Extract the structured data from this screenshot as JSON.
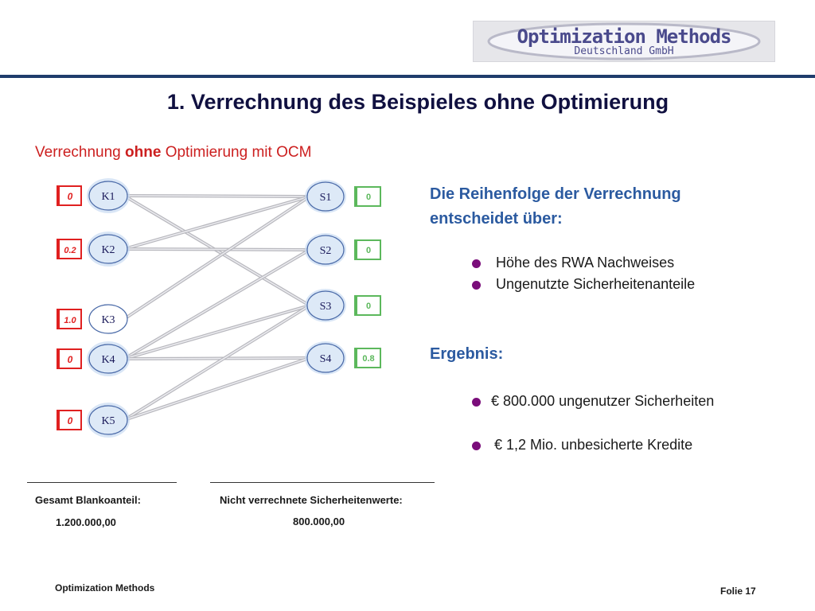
{
  "logo": {
    "line1": "Optimization Methods",
    "line2": "Deutschland GmbH"
  },
  "title": "1. Verrechnung des Beispieles ohne Optimierung",
  "subtitle": {
    "part1": "Verrechnung ",
    "bold": "ohne",
    "part2": " Optimierung mit OCM"
  },
  "diagram": {
    "left_nodes": [
      {
        "label": "K1",
        "badge": "0"
      },
      {
        "label": "K2",
        "badge": "0.2"
      },
      {
        "label": "K3",
        "badge": "1.0"
      },
      {
        "label": "K4",
        "badge": "0"
      },
      {
        "label": "K5",
        "badge": "0"
      }
    ],
    "right_nodes": [
      {
        "label": "S1",
        "badge": "0"
      },
      {
        "label": "S2",
        "badge": "0"
      },
      {
        "label": "S3",
        "badge": "0"
      },
      {
        "label": "S4",
        "badge": "0.8"
      }
    ],
    "edges": [
      [
        "K1",
        "S1"
      ],
      [
        "K1",
        "S3"
      ],
      [
        "K2",
        "S1"
      ],
      [
        "K2",
        "S2"
      ],
      [
        "K3",
        "S1"
      ],
      [
        "K4",
        "S2"
      ],
      [
        "K4",
        "S3"
      ],
      [
        "K4",
        "S4"
      ],
      [
        "K5",
        "S3"
      ],
      [
        "K5",
        "S4"
      ]
    ],
    "colors": {
      "left_badge": "#e02020",
      "right_badge": "#5cb85c",
      "node_fill": "#dde9f7",
      "node_stroke": "#4a6aa8",
      "edge": "#b8b8be"
    }
  },
  "right_panel": {
    "heading_line1": "Die Reihenfolge der Verrechnung",
    "heading_line2": "entscheidet über:",
    "bullets": [
      "Höhe des RWA Nachweises",
      "Ungenutzte Sicherheitenanteile"
    ],
    "result_heading": "Ergebnis:",
    "results": [
      "€ 800.000 ungenutzer Sicherheiten",
      "€ 1,2 Mio. unbesicherte Kredite"
    ]
  },
  "summary": {
    "left_label": "Gesamt Blankoanteil:",
    "left_value": "1.200.000,00",
    "right_label": "Nicht verrechnete Sicherheitenwerte:",
    "right_value": "800.000,00"
  },
  "footer": {
    "left": "Optimization Methods",
    "right": "Folie 17"
  }
}
